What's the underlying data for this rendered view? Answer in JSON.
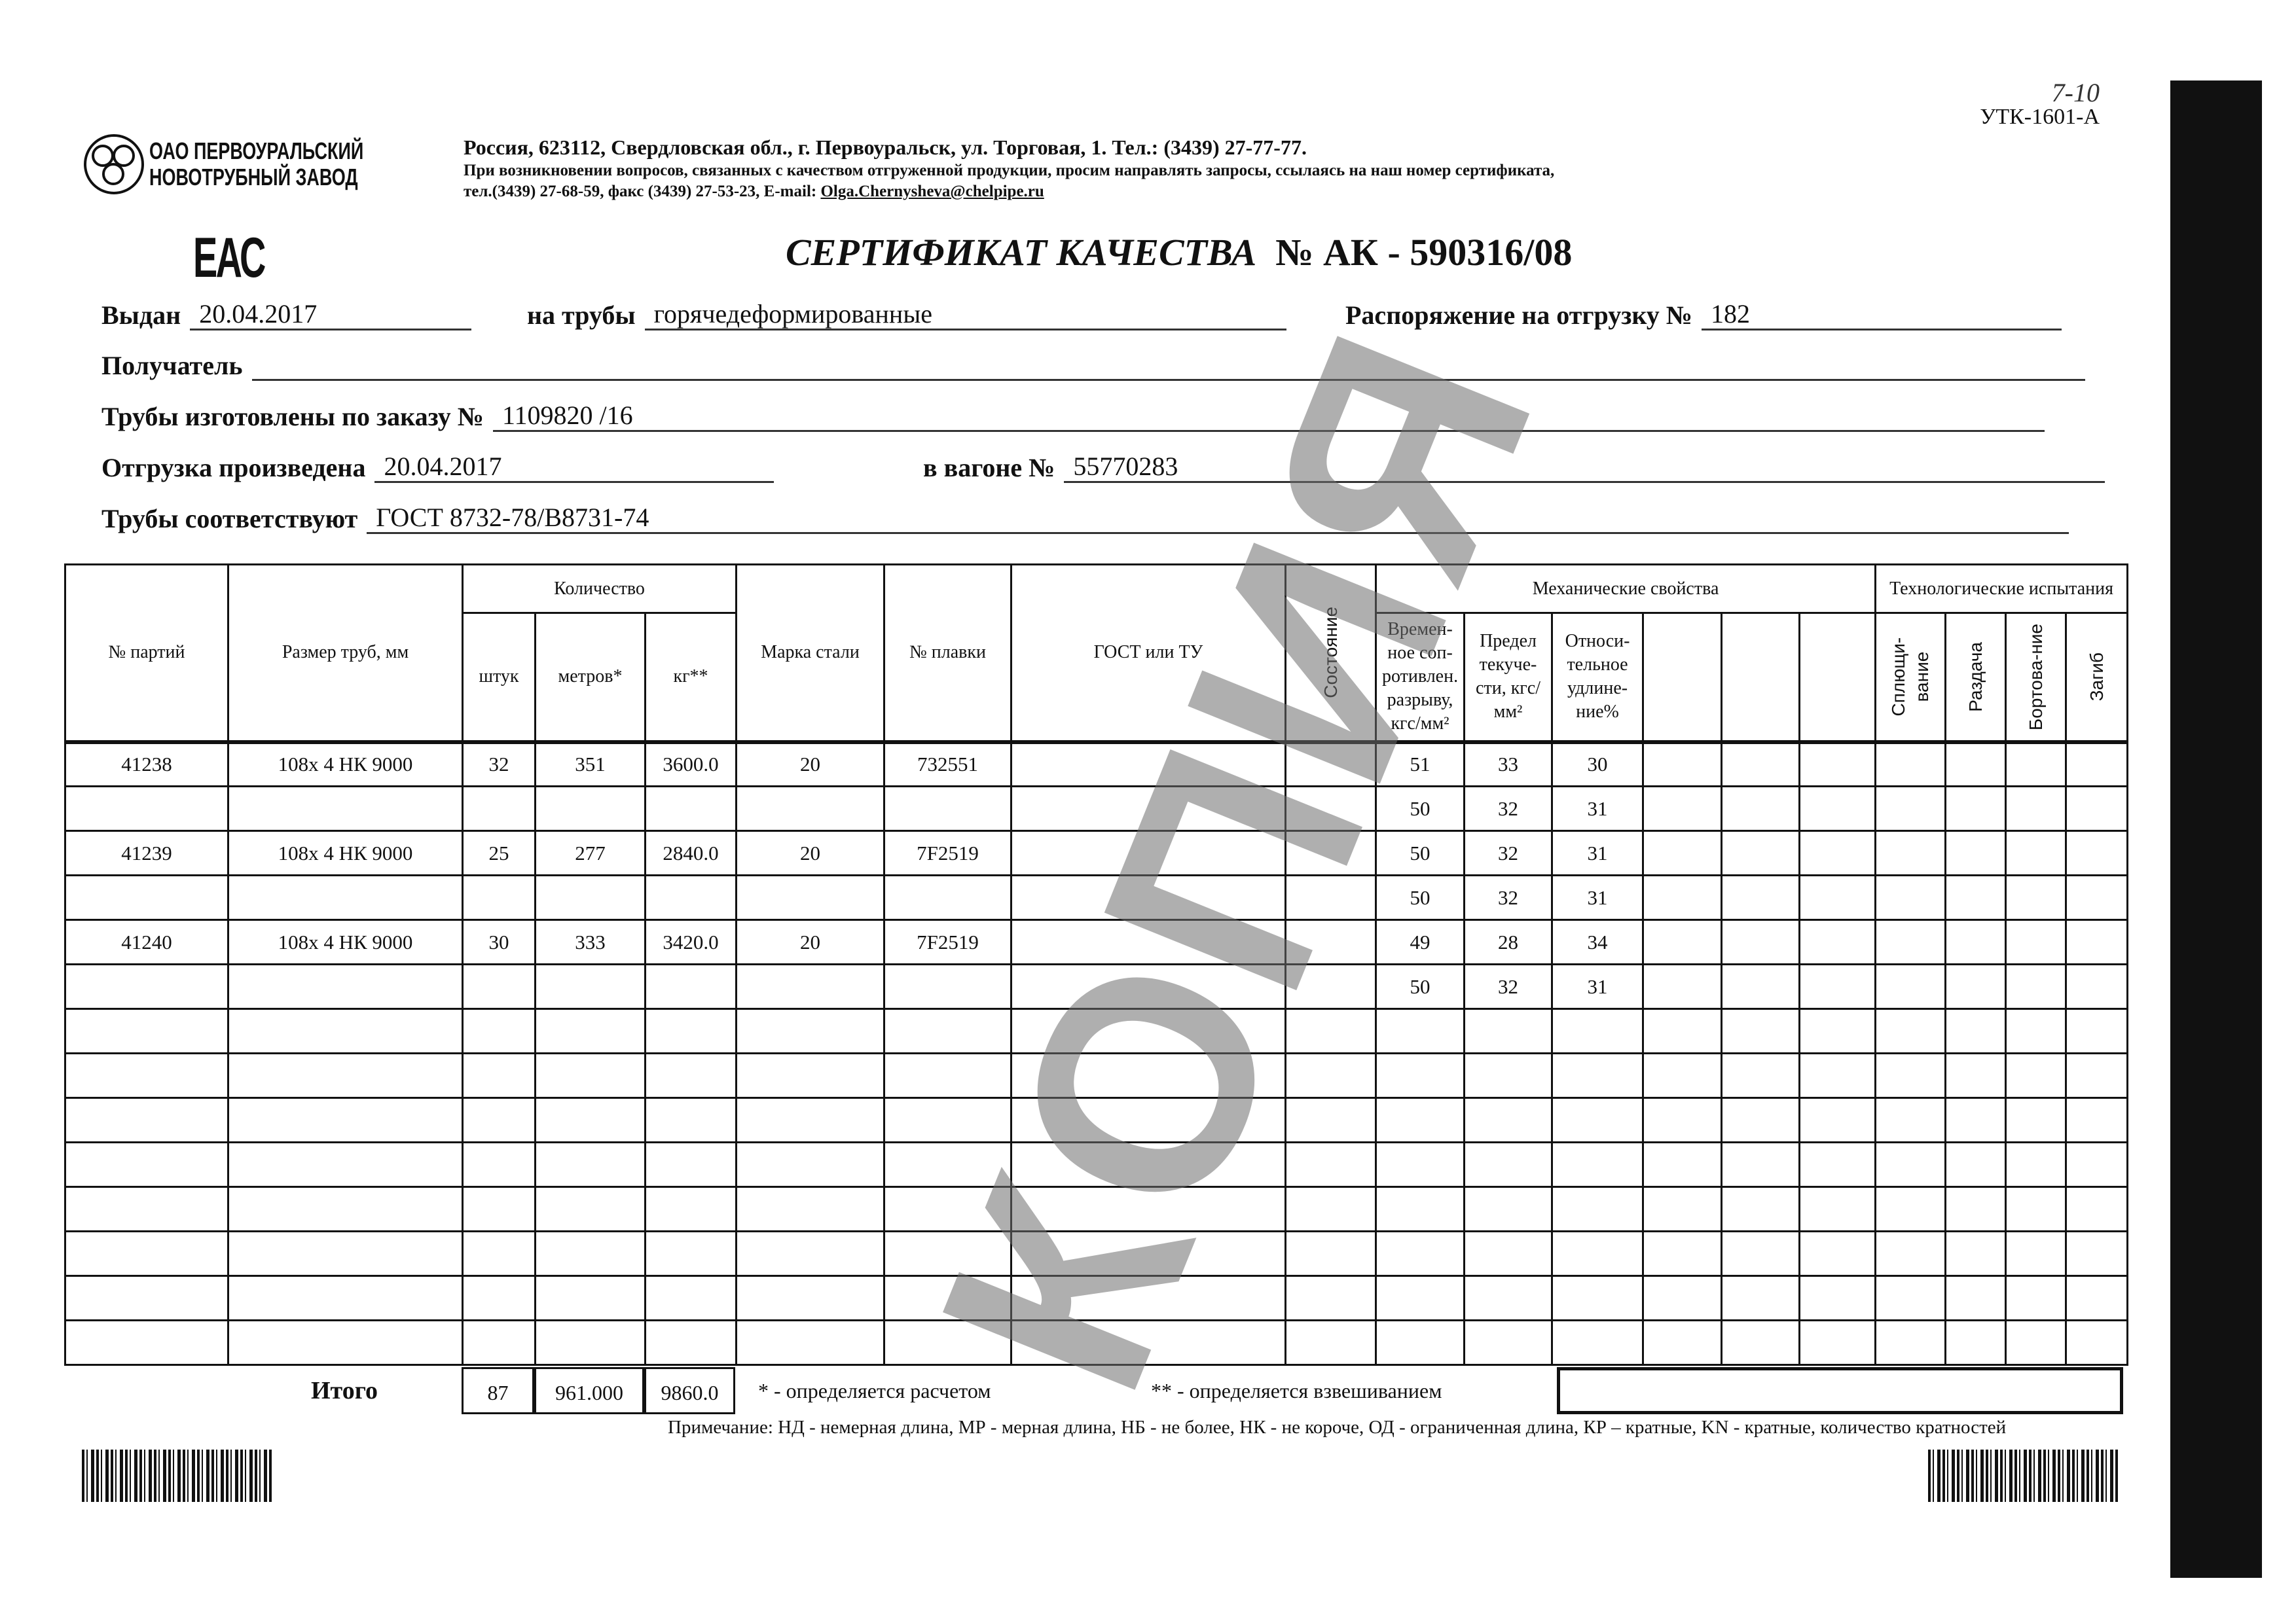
{
  "form_code": "УТК-1601-А",
  "handwritten_mark": "7-10",
  "company": {
    "line1": "ОАО ПЕРВОУРАЛЬСКИЙ",
    "line2": "НОВОТРУБНЫЙ ЗАВОД"
  },
  "address": "Россия, 623112, Свердловская обл., г. Первоуральск, ул. Торговая, 1. Тел.: (3439) 27-77-77.",
  "contact_note": "При возникновении вопросов, связанных с качеством отгруженной продукции, просим направлять запросы, ссылаясь на наш номер сертификата,",
  "contact_phones": "тел.(3439) 27-68-59, факс (3439) 27-53-23, E-mail:",
  "email": "Olga.Chernysheva@chelpipe.ru",
  "eac_mark": "ЕАС",
  "title": "СЕРТИФИКАТ КАЧЕСТВА",
  "cert_number": "№  АК -  590316/08",
  "fields": {
    "issued_label": "Выдан",
    "issued": "20.04.2017",
    "pipes_label": "на трубы",
    "pipes": "горячедеформированные",
    "order_label": "Распоряжение на отгрузку №",
    "order": "182",
    "recipient_label": "Получатель",
    "recipient": "",
    "made_label": "Трубы изготовлены по заказу №",
    "made": "1109820  /16",
    "shipped_label": "Отгрузка произведена",
    "shipped": "20.04.2017",
    "wagon_label": "в вагоне №",
    "wagon": "55770283",
    "conform_label": "Трубы соответствуют",
    "conform": "ГОСТ 8732-78/В8731-74"
  },
  "table": {
    "h_batch": "№ партий",
    "h_size": "Размер труб, мм",
    "h_qty": "Количество",
    "h_pcs": "штук",
    "h_m": "метров*",
    "h_kg": "кг**",
    "h_steel": "Марка стали",
    "h_heat": "№ плавки",
    "h_gost": "ГОСТ или ТУ",
    "h_state": "Состояние",
    "h_mech": "Механические свойства",
    "h_tensile": "Времен-ное соп-ротивлен. разрыву, кгс/мм²",
    "h_yield": "Предел текуче-сти, кгс/мм²",
    "h_elong": "Относи-тельное удлине-ние%",
    "h_tech": "Технологические испытания",
    "h_flat": "Сплющи-вание",
    "h_expand": "Раздача",
    "h_flange": "Бортова-ние",
    "h_bend": "Загиб",
    "rows": [
      {
        "batch": "41238",
        "size": "108х 4 НК 9000",
        "pcs": "32",
        "m": "351",
        "kg": "3600.0",
        "steel": "20",
        "heat": "732551",
        "t": "51",
        "y": "33",
        "e": "30"
      },
      {
        "batch": "",
        "size": "",
        "pcs": "",
        "m": "",
        "kg": "",
        "steel": "",
        "heat": "",
        "t": "50",
        "y": "32",
        "e": "31"
      },
      {
        "batch": "41239",
        "size": "108х 4 НК 9000",
        "pcs": "25",
        "m": "277",
        "kg": "2840.0",
        "steel": "20",
        "heat": "7F2519",
        "t": "50",
        "y": "32",
        "e": "31"
      },
      {
        "batch": "",
        "size": "",
        "pcs": "",
        "m": "",
        "kg": "",
        "steel": "",
        "heat": "",
        "t": "50",
        "y": "32",
        "e": "31"
      },
      {
        "batch": "41240",
        "size": "108х 4 НК 9000",
        "pcs": "30",
        "m": "333",
        "kg": "3420.0",
        "steel": "20",
        "heat": "7F2519",
        "t": "49",
        "y": "28",
        "e": "34"
      },
      {
        "batch": "",
        "size": "",
        "pcs": "",
        "m": "",
        "kg": "",
        "steel": "",
        "heat": "",
        "t": "50",
        "y": "32",
        "e": "31"
      }
    ]
  },
  "totals": {
    "label": "Итого",
    "pcs": "87",
    "m": "961.000",
    "kg": "9860.0",
    "note1": "* - определяется расчетом",
    "note2": "** - определяется взвешиванием"
  },
  "remark": "Примечание: НД - немерная длина, МР - мерная длина, НБ - не более, НК - не короче, ОД - ограниченная длина, КР – кратные, KN - кратные, количество кратностей",
  "watermark": "КОПИЯ"
}
